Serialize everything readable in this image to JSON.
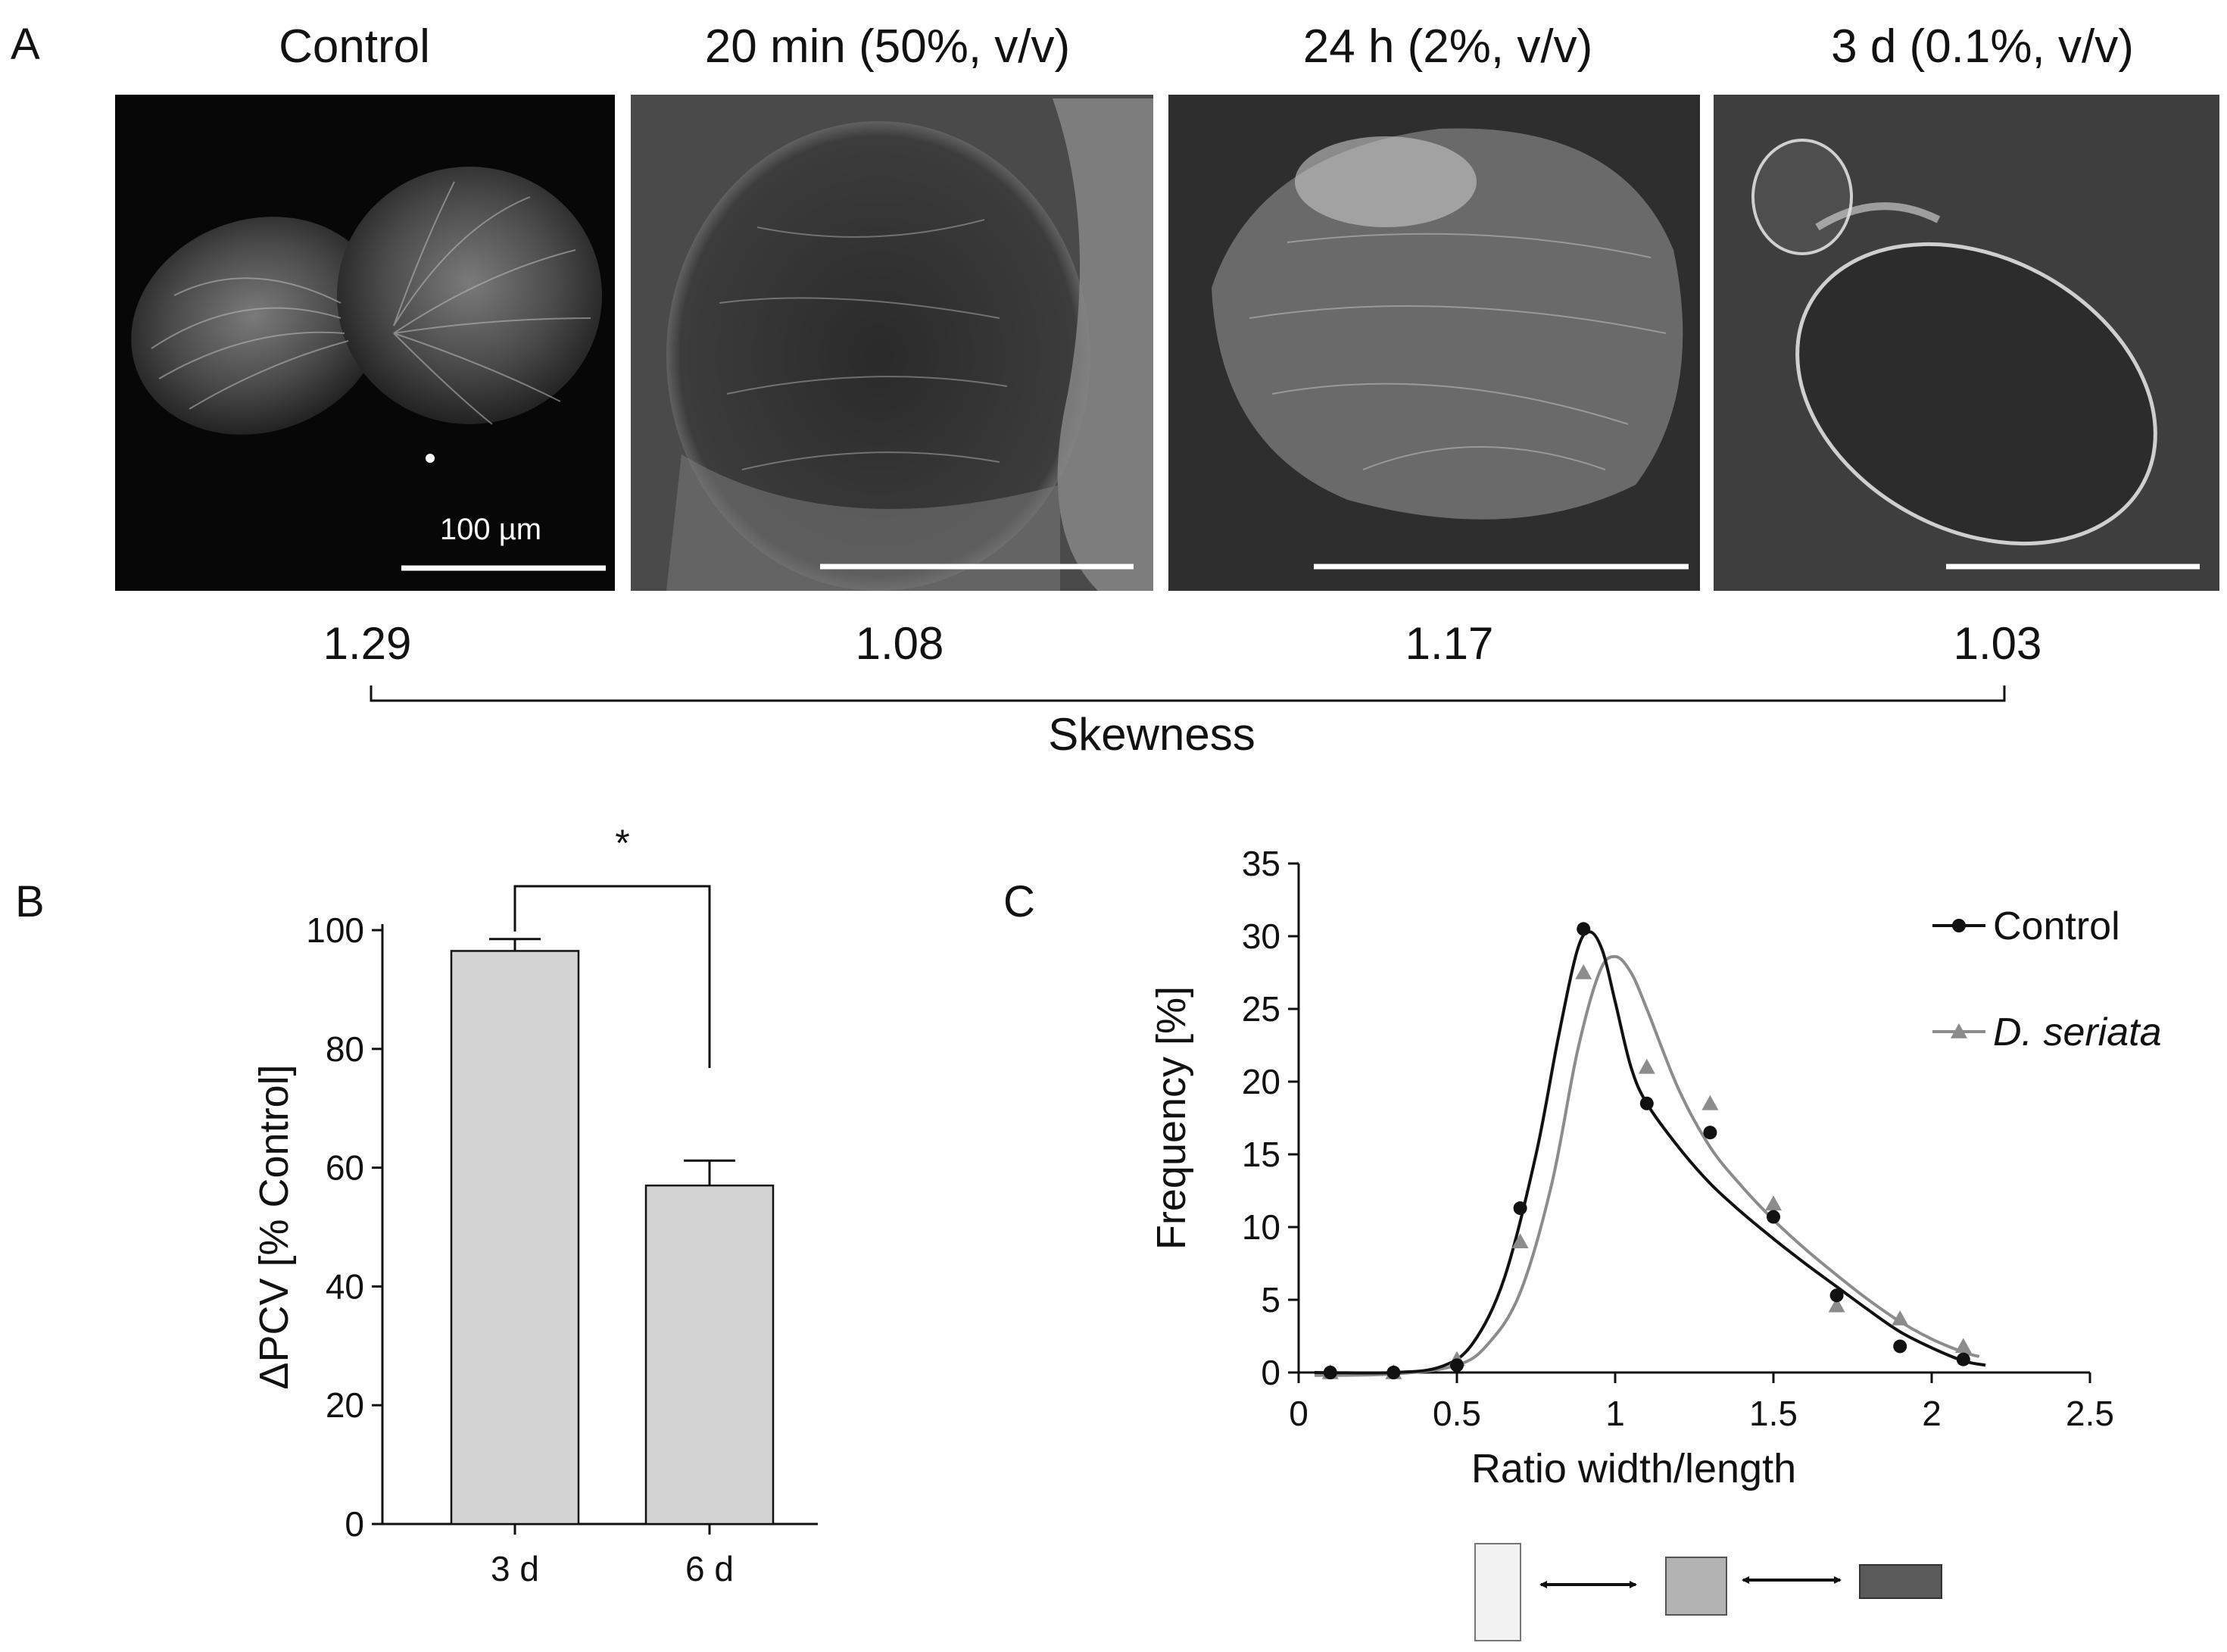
{
  "panel_a": {
    "letter": "A",
    "images": [
      {
        "title": "Control",
        "skewness": "1.29",
        "scale_label": "100 µm"
      },
      {
        "title": "20 min (50%, v/v)",
        "skewness": "1.08"
      },
      {
        "title": "24 h (2%, v/v)",
        "skewness": "1.17"
      },
      {
        "title": "3 d (0.1%, v/v)",
        "skewness": "1.03"
      }
    ],
    "skewness_label": "Skewness"
  },
  "chart_data": [
    {
      "panel": "B",
      "type": "bar",
      "categories": [
        "3 d",
        "6 d"
      ],
      "values": [
        96.5,
        57
      ],
      "errors": [
        2,
        4.2
      ],
      "ylabel": "ΔPCV [% Control]",
      "xlabel": "",
      "ylim": [
        0,
        100
      ],
      "yticks": [
        0,
        20,
        40,
        60,
        80,
        100
      ],
      "significance": "*",
      "bar_color": "#d3d3d3"
    },
    {
      "panel": "C",
      "type": "line",
      "xlabel": "Ratio width/length",
      "ylabel": "Frequency [%]",
      "xlim": [
        0,
        2.5
      ],
      "ylim": [
        0,
        35
      ],
      "xticks": [
        0,
        0.5,
        1,
        1.5,
        2,
        2.5
      ],
      "xtick_labels": [
        "0",
        "0.5",
        "1",
        "1.5",
        "2",
        "2.5"
      ],
      "yticks": [
        0,
        5,
        10,
        15,
        20,
        25,
        30,
        35
      ],
      "series": [
        {
          "name": "Control",
          "italic": false,
          "color": "#111111",
          "marker": "circle",
          "points": [
            [
              0.1,
              0
            ],
            [
              0.3,
              0
            ],
            [
              0.5,
              0.5
            ],
            [
              0.7,
              11.3
            ],
            [
              0.9,
              30.5
            ],
            [
              1.1,
              18.5
            ],
            [
              1.3,
              16.5
            ],
            [
              1.5,
              10.7
            ],
            [
              1.7,
              5.3
            ],
            [
              1.9,
              1.8
            ],
            [
              2.1,
              0.9
            ]
          ],
          "curve": [
            [
              0.05,
              0
            ],
            [
              0.3,
              0
            ],
            [
              0.45,
              0.4
            ],
            [
              0.55,
              2
            ],
            [
              0.65,
              6.5
            ],
            [
              0.75,
              15
            ],
            [
              0.82,
              23
            ],
            [
              0.88,
              29
            ],
            [
              0.92,
              30.3
            ],
            [
              0.96,
              29
            ],
            [
              1.0,
              25.5
            ],
            [
              1.05,
              21
            ],
            [
              1.1,
              18.5
            ],
            [
              1.2,
              15.5
            ],
            [
              1.3,
              13
            ],
            [
              1.4,
              11
            ],
            [
              1.5,
              9.2
            ],
            [
              1.6,
              7.5
            ],
            [
              1.7,
              5.9
            ],
            [
              1.8,
              4.3
            ],
            [
              1.9,
              2.8
            ],
            [
              2.0,
              1.7
            ],
            [
              2.1,
              0.8
            ],
            [
              2.17,
              0.5
            ]
          ]
        },
        {
          "name": "D. seriata",
          "italic": true,
          "color": "#8c8c8c",
          "marker": "triangle",
          "points": [
            [
              0.1,
              0
            ],
            [
              0.3,
              0
            ],
            [
              0.5,
              0.9
            ],
            [
              0.7,
              9
            ],
            [
              0.9,
              27.5
            ],
            [
              1.1,
              21
            ],
            [
              1.3,
              18.5
            ],
            [
              1.5,
              11.6
            ],
            [
              1.7,
              4.6
            ],
            [
              1.9,
              3.7
            ],
            [
              2.1,
              1.8
            ]
          ],
          "curve": [
            [
              0.05,
              -0.2
            ],
            [
              0.3,
              -0.1
            ],
            [
              0.5,
              0.5
            ],
            [
              0.6,
              2
            ],
            [
              0.7,
              5.5
            ],
            [
              0.8,
              13
            ],
            [
              0.88,
              22
            ],
            [
              0.95,
              27.5
            ],
            [
              1.0,
              28.6
            ],
            [
              1.05,
              27.5
            ],
            [
              1.1,
              25
            ],
            [
              1.2,
              19.5
            ],
            [
              1.3,
              15.5
            ],
            [
              1.4,
              12.8
            ],
            [
              1.5,
              10.5
            ],
            [
              1.6,
              8.5
            ],
            [
              1.7,
              6.7
            ],
            [
              1.8,
              5
            ],
            [
              1.9,
              3.5
            ],
            [
              2.0,
              2.3
            ],
            [
              2.1,
              1.4
            ],
            [
              2.15,
              1.1
            ]
          ]
        }
      ],
      "shape_legend": {
        "fills": [
          "#f2f2f2",
          "#b3b3b3",
          "#5a5a5a"
        ]
      }
    }
  ]
}
